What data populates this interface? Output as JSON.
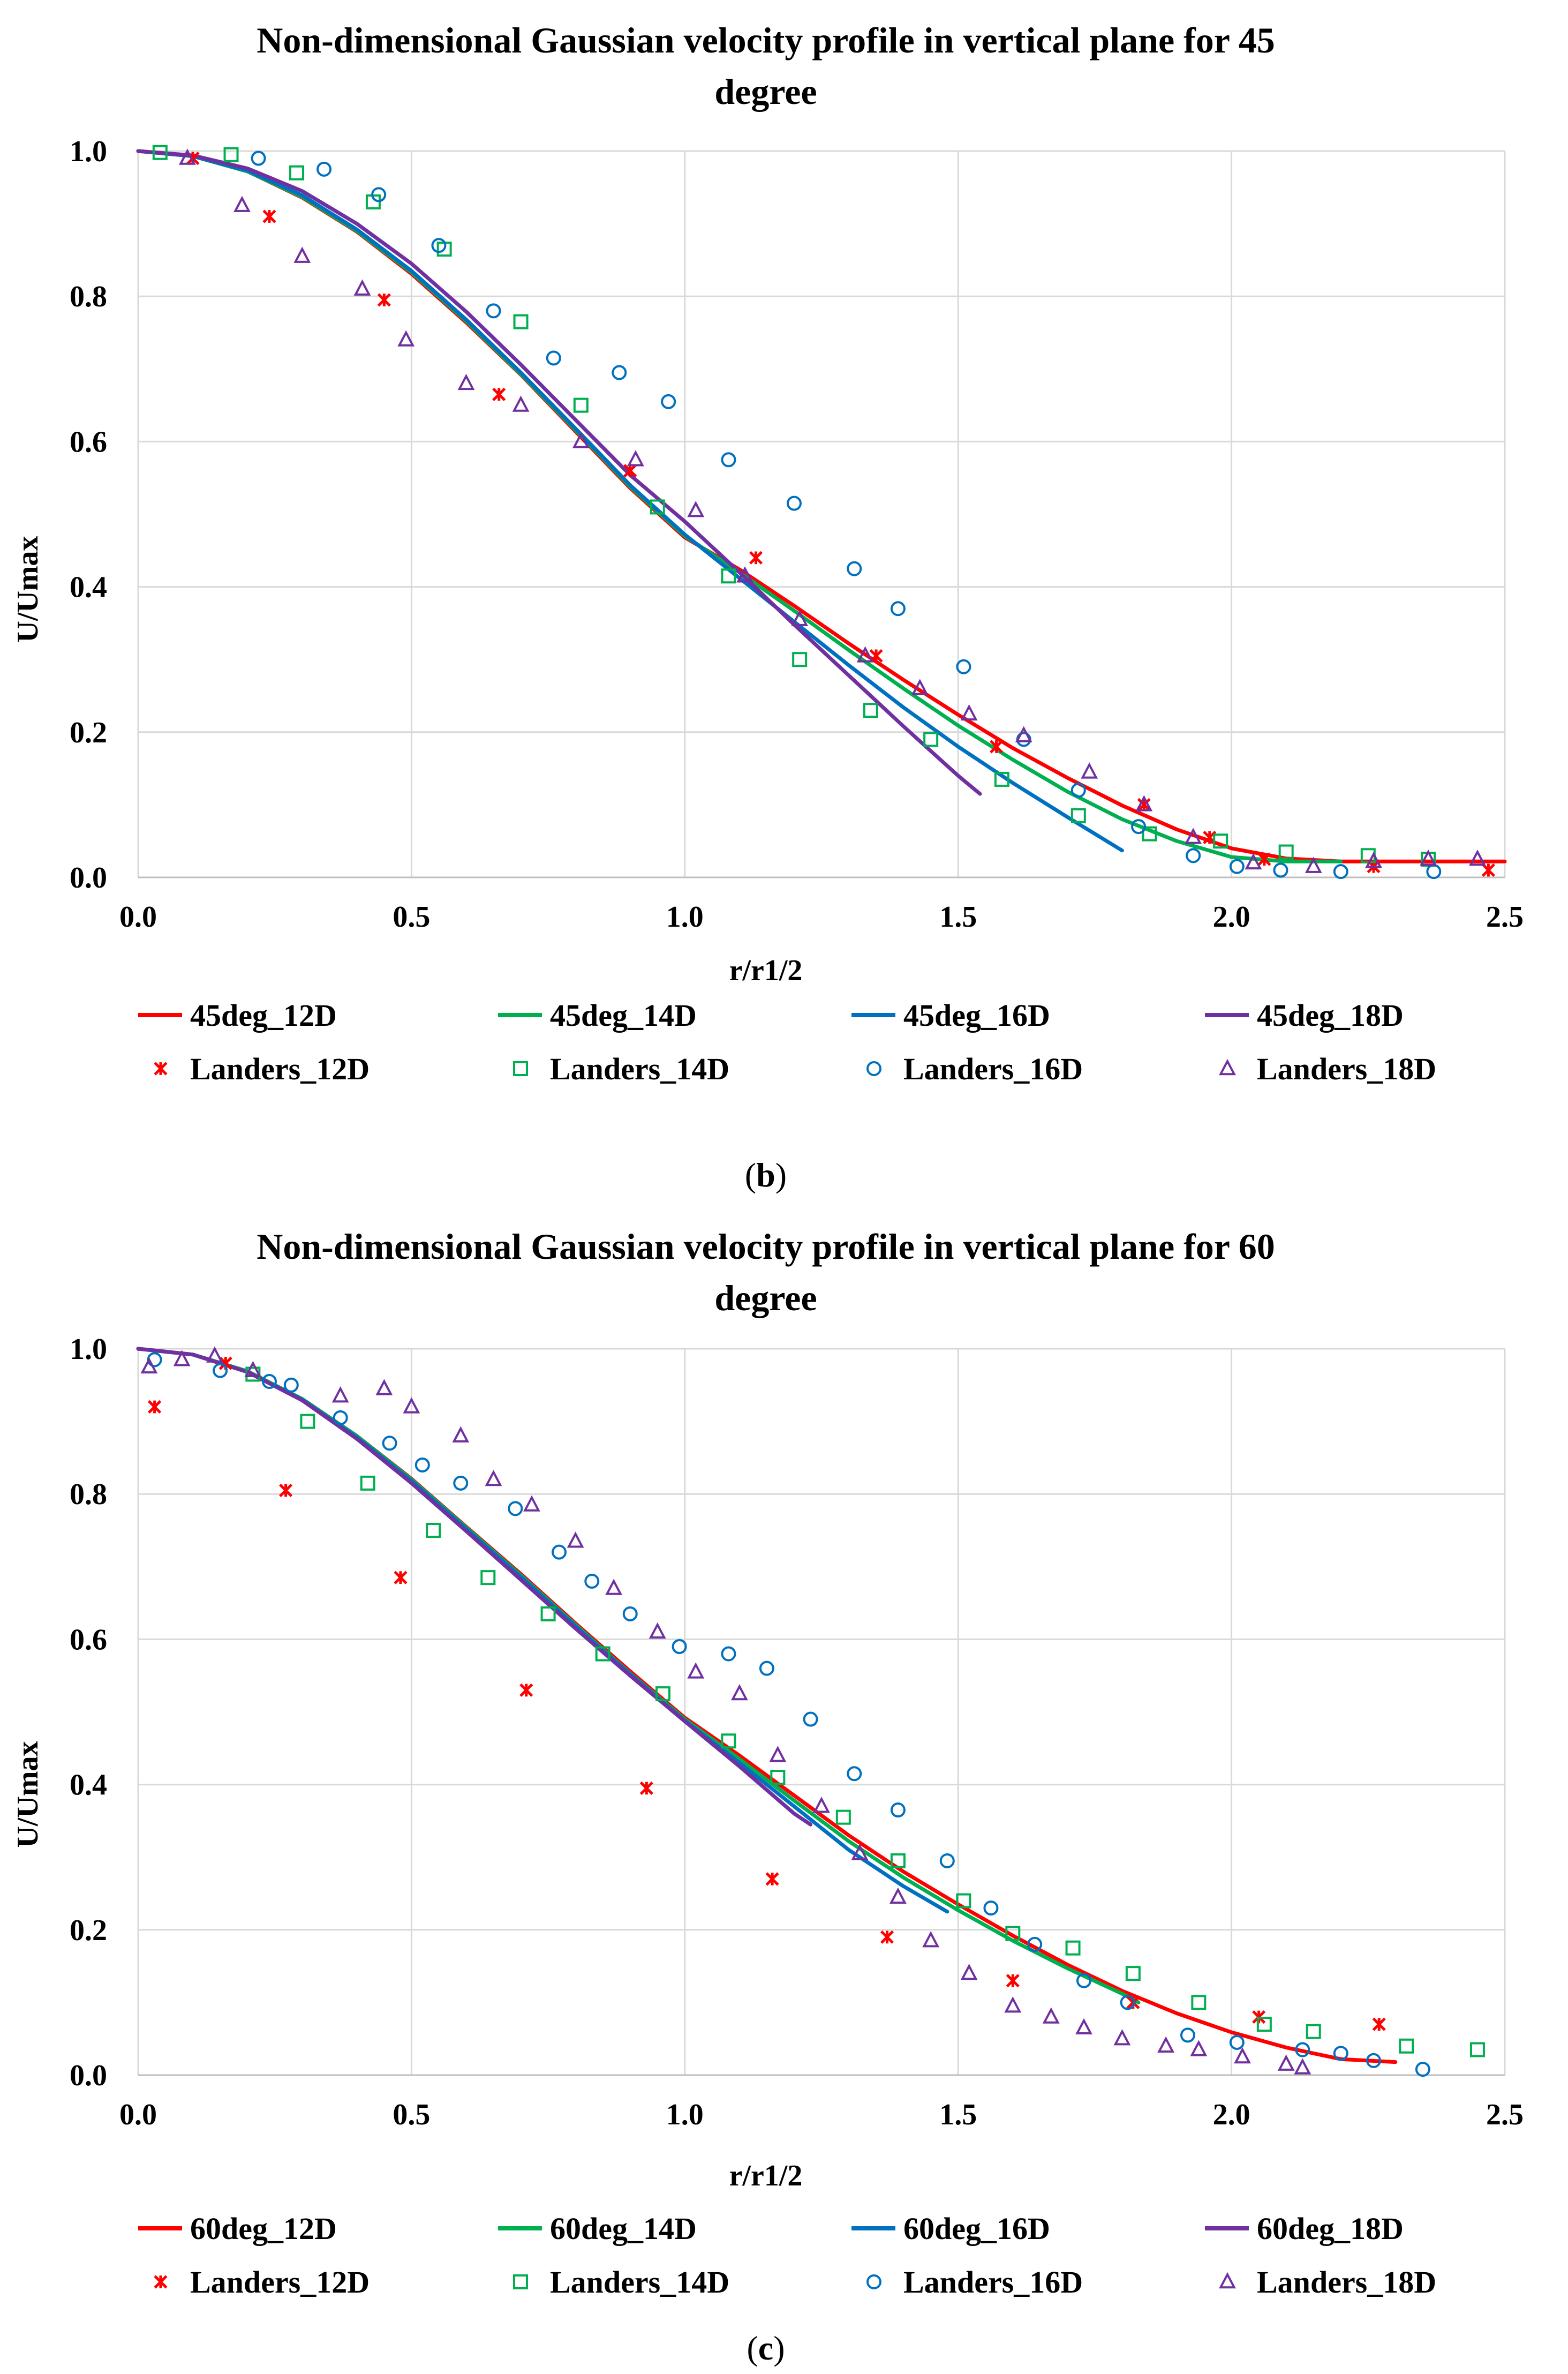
{
  "chart_data": [
    {
      "type": "line",
      "panel_label": "b",
      "title": "Non-dimensional  Gaussian velocity profile in vertical plane for 45 degree",
      "title_lines": [
        "Non-dimensional  Gaussian velocity profile in vertical plane for 45",
        "degree"
      ],
      "xlabel": "r/r1/2",
      "ylabel": "U/Umax",
      "xlim": [
        0,
        2.5
      ],
      "ylim": [
        0,
        1.0
      ],
      "xticks": [
        "0.0",
        "0.5",
        "1.0",
        "1.5",
        "2.0",
        "2.5"
      ],
      "yticks": [
        "0.0",
        "0.2",
        "0.4",
        "0.6",
        "0.8",
        "1.0"
      ],
      "grid": true,
      "legend_position": "bottom",
      "series": [
        {
          "name": "45deg_12D",
          "kind": "line",
          "color": "#ff0000",
          "x": [
            0,
            0.1,
            0.2,
            0.3,
            0.4,
            0.5,
            0.6,
            0.7,
            0.8,
            0.9,
            1.0,
            1.1,
            1.2,
            1.3,
            1.4,
            1.5,
            1.6,
            1.7,
            1.8,
            1.9,
            2.0,
            2.1,
            2.2,
            2.3,
            2.4,
            2.5
          ],
          "y": [
            1.0,
            0.993,
            0.972,
            0.936,
            0.889,
            0.831,
            0.764,
            0.692,
            0.614,
            0.536,
            0.468,
            0.424,
            0.374,
            0.322,
            0.272,
            0.224,
            0.178,
            0.137,
            0.099,
            0.066,
            0.04,
            0.026,
            0.022,
            0.022,
            0.022,
            0.022
          ]
        },
        {
          "name": "45deg_14D",
          "kind": "line",
          "color": "#00b050",
          "x": [
            0,
            0.1,
            0.2,
            0.3,
            0.4,
            0.5,
            0.6,
            0.7,
            0.8,
            0.9,
            1.0,
            1.1,
            1.2,
            1.3,
            1.4,
            1.5,
            1.6,
            1.7,
            1.8,
            1.9,
            2.0,
            2.1,
            2.2
          ],
          "y": [
            1.0,
            0.993,
            0.972,
            0.937,
            0.89,
            0.833,
            0.766,
            0.693,
            0.616,
            0.538,
            0.47,
            0.42,
            0.367,
            0.313,
            0.26,
            0.209,
            0.162,
            0.118,
            0.08,
            0.05,
            0.028,
            0.022,
            0.022
          ]
        },
        {
          "name": "45deg_16D",
          "kind": "line",
          "color": "#0070c0",
          "x": [
            0,
            0.1,
            0.2,
            0.3,
            0.4,
            0.5,
            0.6,
            0.7,
            0.8,
            0.9,
            1.0,
            1.1,
            1.2,
            1.3,
            1.4,
            1.5,
            1.6,
            1.7,
            1.8
          ],
          "y": [
            1.0,
            0.993,
            0.973,
            0.939,
            0.892,
            0.835,
            0.768,
            0.695,
            0.618,
            0.54,
            0.472,
            0.412,
            0.352,
            0.292,
            0.234,
            0.18,
            0.13,
            0.083,
            0.037
          ]
        },
        {
          "name": "45deg_18D",
          "kind": "line",
          "color": "#7030a0",
          "x": [
            0,
            0.1,
            0.2,
            0.3,
            0.4,
            0.5,
            0.6,
            0.7,
            0.8,
            0.9,
            1.0,
            1.1,
            1.2,
            1.3,
            1.4,
            1.5,
            1.54
          ],
          "y": [
            1.0,
            0.994,
            0.976,
            0.945,
            0.9,
            0.845,
            0.779,
            0.706,
            0.63,
            0.554,
            0.49,
            0.42,
            0.348,
            0.278,
            0.208,
            0.14,
            0.115
          ]
        },
        {
          "name": "Landers_12D",
          "kind": "scatter",
          "marker": "asterisk",
          "color": "#ff0000",
          "x": [
            0.1,
            0.24,
            0.45,
            0.66,
            0.9,
            1.13,
            1.35,
            1.57,
            1.84,
            1.96,
            2.06,
            2.26,
            2.47
          ],
          "y": [
            0.99,
            0.91,
            0.795,
            0.665,
            0.56,
            0.44,
            0.305,
            0.18,
            0.1,
            0.055,
            0.025,
            0.015,
            0.01
          ]
        },
        {
          "name": "Landers_14D",
          "kind": "scatter",
          "marker": "square",
          "color": "#00b050",
          "x": [
            0.04,
            0.17,
            0.29,
            0.43,
            0.56,
            0.7,
            0.81,
            0.95,
            1.08,
            1.21,
            1.34,
            1.45,
            1.58,
            1.72,
            1.85,
            1.98,
            2.1,
            2.25,
            2.36
          ],
          "y": [
            0.998,
            0.995,
            0.97,
            0.93,
            0.865,
            0.765,
            0.65,
            0.51,
            0.415,
            0.3,
            0.23,
            0.19,
            0.135,
            0.085,
            0.06,
            0.05,
            0.035,
            0.03,
            0.025
          ]
        },
        {
          "name": "Landers_16D",
          "kind": "scatter",
          "marker": "circle",
          "color": "#0070c0",
          "x": [
            0.22,
            0.34,
            0.44,
            0.55,
            0.65,
            0.76,
            0.88,
            0.97,
            1.08,
            1.2,
            1.31,
            1.39,
            1.51,
            1.62,
            1.72,
            1.83,
            1.93,
            2.01,
            2.09,
            2.2,
            2.37
          ],
          "y": [
            0.99,
            0.975,
            0.94,
            0.87,
            0.78,
            0.715,
            0.695,
            0.655,
            0.575,
            0.515,
            0.425,
            0.37,
            0.29,
            0.19,
            0.12,
            0.07,
            0.03,
            0.015,
            0.01,
            0.008,
            0.008
          ]
        },
        {
          "name": "Landers_18D",
          "kind": "scatter",
          "marker": "triangle",
          "color": "#7030a0",
          "x": [
            0.09,
            0.19,
            0.3,
            0.41,
            0.49,
            0.6,
            0.7,
            0.81,
            0.91,
            1.02,
            1.11,
            1.21,
            1.33,
            1.43,
            1.52,
            1.62,
            1.74,
            1.84,
            1.93,
            2.04,
            2.15,
            2.26,
            2.36,
            2.45
          ],
          "y": [
            0.99,
            0.925,
            0.855,
            0.81,
            0.74,
            0.68,
            0.65,
            0.6,
            0.575,
            0.505,
            0.415,
            0.355,
            0.305,
            0.26,
            0.225,
            0.195,
            0.145,
            0.1,
            0.055,
            0.02,
            0.015,
            0.022,
            0.025,
            0.025
          ]
        }
      ]
    },
    {
      "type": "line",
      "panel_label": "c",
      "title": "Non-dimensional  Gaussian velocity profile in vertical plane for 60 degree",
      "title_lines": [
        "Non-dimensional  Gaussian velocity profile in vertical plane for 60",
        "degree"
      ],
      "xlabel": "r/r1/2",
      "ylabel": "U/Umax",
      "xlim": [
        0,
        2.5
      ],
      "ylim": [
        0,
        1.0
      ],
      "xticks": [
        "0.0",
        "0.5",
        "1.0",
        "1.5",
        "2.0",
        "2.5"
      ],
      "yticks": [
        "0.0",
        "0.2",
        "0.4",
        "0.6",
        "0.8",
        "1.0"
      ],
      "grid": true,
      "legend_position": "bottom",
      "series": [
        {
          "name": "60deg_12D",
          "kind": "line",
          "color": "#ff0000",
          "x": [
            0,
            0.1,
            0.2,
            0.3,
            0.4,
            0.5,
            0.6,
            0.7,
            0.8,
            0.9,
            1.0,
            1.1,
            1.2,
            1.3,
            1.4,
            1.5,
            1.6,
            1.7,
            1.8,
            1.9,
            2.0,
            2.1,
            2.2,
            2.3
          ],
          "y": [
            1.0,
            0.992,
            0.969,
            0.931,
            0.88,
            0.821,
            0.755,
            0.69,
            0.622,
            0.556,
            0.492,
            0.44,
            0.385,
            0.33,
            0.28,
            0.235,
            0.192,
            0.152,
            0.116,
            0.085,
            0.059,
            0.038,
            0.022,
            0.018
          ]
        },
        {
          "name": "60deg_14D",
          "kind": "line",
          "color": "#00b050",
          "x": [
            0,
            0.1,
            0.2,
            0.3,
            0.4,
            0.5,
            0.6,
            0.7,
            0.8,
            0.9,
            1.0,
            1.1,
            1.2,
            1.3,
            1.4,
            1.5,
            1.6,
            1.7,
            1.8,
            1.83
          ],
          "y": [
            1.0,
            0.992,
            0.969,
            0.931,
            0.88,
            0.82,
            0.754,
            0.688,
            0.62,
            0.553,
            0.49,
            0.435,
            0.378,
            0.322,
            0.272,
            0.227,
            0.185,
            0.147,
            0.112,
            0.1
          ]
        },
        {
          "name": "60deg_16D",
          "kind": "line",
          "color": "#0070c0",
          "x": [
            0,
            0.1,
            0.2,
            0.3,
            0.4,
            0.5,
            0.6,
            0.7,
            0.8,
            0.9,
            1.0,
            1.1,
            1.2,
            1.3,
            1.4,
            1.48
          ],
          "y": [
            1.0,
            0.992,
            0.968,
            0.93,
            0.878,
            0.818,
            0.752,
            0.686,
            0.618,
            0.552,
            0.488,
            0.43,
            0.37,
            0.31,
            0.26,
            0.225
          ]
        },
        {
          "name": "60deg_18D",
          "kind": "line",
          "color": "#7030a0",
          "x": [
            0,
            0.1,
            0.2,
            0.3,
            0.4,
            0.5,
            0.6,
            0.7,
            0.8,
            0.9,
            1.0,
            1.1,
            1.2,
            1.23
          ],
          "y": [
            1.0,
            0.992,
            0.968,
            0.929,
            0.876,
            0.815,
            0.749,
            0.682,
            0.615,
            0.55,
            0.487,
            0.425,
            0.36,
            0.345
          ]
        },
        {
          "name": "Landers_12D",
          "kind": "scatter",
          "marker": "asterisk",
          "color": "#ff0000",
          "x": [
            0.03,
            0.16,
            0.27,
            0.48,
            0.71,
            0.93,
            1.16,
            1.37,
            1.6,
            1.82,
            2.05,
            2.27
          ],
          "y": [
            0.92,
            0.98,
            0.805,
            0.685,
            0.53,
            0.395,
            0.27,
            0.19,
            0.13,
            0.1,
            0.08,
            0.07
          ]
        },
        {
          "name": "Landers_14D",
          "kind": "scatter",
          "marker": "square",
          "color": "#00b050",
          "x": [
            0.21,
            0.31,
            0.42,
            0.54,
            0.64,
            0.75,
            0.85,
            0.96,
            1.08,
            1.17,
            1.29,
            1.39,
            1.51,
            1.6,
            1.71,
            1.82,
            1.94,
            2.06,
            2.15,
            2.32,
            2.45
          ],
          "y": [
            0.965,
            0.9,
            0.815,
            0.75,
            0.685,
            0.635,
            0.58,
            0.525,
            0.46,
            0.41,
            0.355,
            0.295,
            0.24,
            0.195,
            0.175,
            0.14,
            0.1,
            0.07,
            0.06,
            0.04,
            0.035
          ]
        },
        {
          "name": "Landers_16D",
          "kind": "scatter",
          "marker": "circle",
          "color": "#0070c0",
          "x": [
            0.03,
            0.15,
            0.24,
            0.28,
            0.37,
            0.46,
            0.52,
            0.59,
            0.69,
            0.77,
            0.83,
            0.9,
            0.99,
            1.08,
            1.15,
            1.23,
            1.31,
            1.39,
            1.48,
            1.56,
            1.64,
            1.73,
            1.81,
            1.92,
            2.01,
            2.13,
            2.2,
            2.26,
            2.35
          ],
          "y": [
            0.985,
            0.97,
            0.955,
            0.95,
            0.905,
            0.87,
            0.84,
            0.815,
            0.78,
            0.72,
            0.68,
            0.635,
            0.59,
            0.58,
            0.56,
            0.49,
            0.415,
            0.365,
            0.295,
            0.23,
            0.18,
            0.13,
            0.1,
            0.055,
            0.045,
            0.035,
            0.03,
            0.02,
            0.008
          ]
        },
        {
          "name": "Landers_18D",
          "kind": "scatter",
          "marker": "triangle",
          "color": "#7030a0",
          "x": [
            0.02,
            0.08,
            0.14,
            0.21,
            0.37,
            0.45,
            0.5,
            0.59,
            0.65,
            0.72,
            0.8,
            0.87,
            0.95,
            1.02,
            1.1,
            1.17,
            1.25,
            1.32,
            1.39,
            1.45,
            1.52,
            1.6,
            1.67,
            1.73,
            1.8,
            1.88,
            1.94,
            2.02,
            2.1,
            2.13
          ],
          "y": [
            0.975,
            0.985,
            0.99,
            0.97,
            0.935,
            0.945,
            0.92,
            0.88,
            0.82,
            0.785,
            0.735,
            0.67,
            0.61,
            0.555,
            0.525,
            0.44,
            0.37,
            0.305,
            0.245,
            0.185,
            0.14,
            0.095,
            0.08,
            0.065,
            0.05,
            0.04,
            0.035,
            0.025,
            0.015,
            0.01
          ]
        }
      ]
    }
  ]
}
